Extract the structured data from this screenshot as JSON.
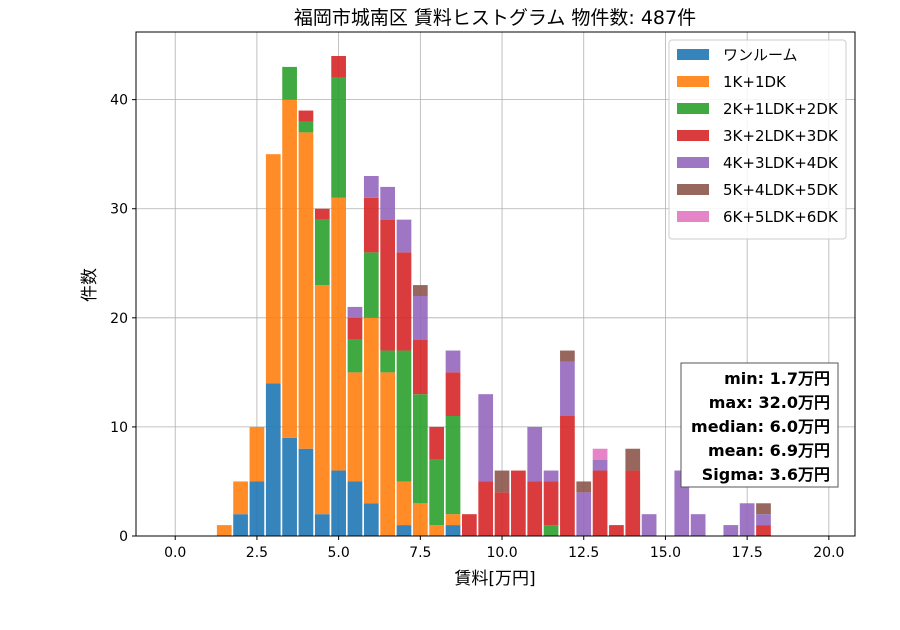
{
  "chart_data": {
    "type": "bar",
    "stacked": true,
    "title": "福岡市城南区 賃料ヒストグラム 物件数: 487件",
    "xlabel": "賃料[万円]",
    "ylabel": "件数",
    "xlim": [
      -1.2,
      20.8
    ],
    "ylim": [
      0,
      46.2
    ],
    "xticks": [
      0.0,
      2.5,
      5.0,
      7.5,
      10.0,
      12.5,
      15.0,
      17.5,
      20.0
    ],
    "xtick_labels": [
      "0.0",
      "2.5",
      "5.0",
      "7.5",
      "10.0",
      "12.5",
      "15.0",
      "17.5",
      "20.0"
    ],
    "yticks": [
      0,
      10,
      20,
      30,
      40
    ],
    "ytick_labels": [
      "0",
      "10",
      "20",
      "30",
      "40"
    ],
    "grid": true,
    "legend_position": "top-right",
    "bin_width": 0.5,
    "x": [
      1.5,
      2.0,
      2.5,
      3.0,
      3.5,
      4.0,
      4.5,
      5.0,
      5.5,
      6.0,
      6.5,
      7.0,
      7.5,
      8.0,
      8.5,
      9.0,
      9.5,
      10.0,
      10.5,
      11.0,
      11.5,
      12.0,
      12.5,
      13.0,
      13.5,
      14.0,
      14.5,
      15.0,
      15.5,
      16.0,
      16.5,
      17.0,
      17.5,
      18.0,
      18.5
    ],
    "series": [
      {
        "name": "ワンルーム",
        "color": "#1f77b4",
        "values": [
          0,
          2,
          5,
          14,
          9,
          8,
          2,
          6,
          5,
          3,
          0,
          1,
          0,
          0,
          1,
          0,
          0,
          0,
          0,
          0,
          0,
          0,
          0,
          0,
          0,
          0,
          0,
          0,
          0,
          0,
          0,
          0,
          0,
          0,
          0
        ]
      },
      {
        "name": "1K+1DK",
        "color": "#ff7f0e",
        "values": [
          1,
          3,
          5,
          21,
          31,
          29,
          21,
          25,
          10,
          17,
          15,
          4,
          3,
          1,
          1,
          0,
          0,
          0,
          0,
          0,
          0,
          0,
          0,
          0,
          0,
          0,
          0,
          0,
          0,
          0,
          0,
          0,
          0,
          0,
          0
        ]
      },
      {
        "name": "2K+1LDK+2DK",
        "color": "#2ca02c",
        "values": [
          0,
          0,
          0,
          0,
          3,
          1,
          6,
          11,
          3,
          6,
          2,
          12,
          10,
          6,
          9,
          0,
          0,
          0,
          0,
          0,
          1,
          0,
          0,
          0,
          0,
          0,
          0,
          0,
          0,
          0,
          0,
          0,
          0,
          0,
          0
        ]
      },
      {
        "name": "3K+2LDK+3DK",
        "color": "#d62728",
        "values": [
          0,
          0,
          0,
          0,
          0,
          1,
          1,
          2,
          2,
          5,
          12,
          9,
          5,
          3,
          4,
          2,
          5,
          4,
          6,
          5,
          4,
          11,
          0,
          6,
          1,
          6,
          0,
          0,
          0,
          0,
          0,
          0,
          0,
          1,
          0
        ]
      },
      {
        "name": "4K+3LDK+4DK",
        "color": "#9467bd",
        "values": [
          0,
          0,
          0,
          0,
          0,
          0,
          0,
          0,
          1,
          2,
          3,
          3,
          4,
          0,
          2,
          0,
          8,
          0,
          0,
          5,
          1,
          5,
          4,
          1,
          0,
          0,
          2,
          0,
          6,
          2,
          0,
          1,
          3,
          1,
          0
        ]
      },
      {
        "name": "5K+4LDK+5DK",
        "color": "#8c564b",
        "values": [
          0,
          0,
          0,
          0,
          0,
          0,
          0,
          0,
          0,
          0,
          0,
          0,
          1,
          0,
          0,
          0,
          0,
          2,
          0,
          0,
          0,
          1,
          1,
          0,
          0,
          2,
          0,
          0,
          0,
          0,
          0,
          0,
          0,
          1,
          0
        ]
      },
      {
        "name": "6K+5LDK+6DK",
        "color": "#e377c2",
        "values": [
          0,
          0,
          0,
          0,
          0,
          0,
          0,
          0,
          0,
          0,
          0,
          0,
          0,
          0,
          0,
          0,
          0,
          0,
          0,
          0,
          0,
          0,
          0,
          1,
          0,
          0,
          0,
          0,
          0,
          0,
          0,
          0,
          0,
          0,
          0
        ]
      }
    ],
    "stats": [
      "min: 1.7万円",
      "max: 32.0万円",
      "median: 6.0万円",
      "mean: 6.9万円",
      "Sigma: 3.6万円"
    ]
  }
}
